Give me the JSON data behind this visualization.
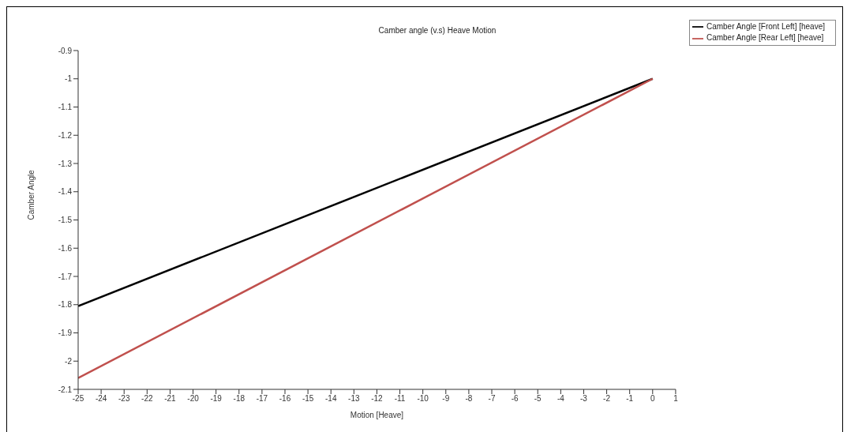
{
  "chart_data": {
    "type": "line",
    "title": "Camber angle (v.s) Heave Motion",
    "xlabel": "Motion [Heave]",
    "ylabel": "Camber Angle",
    "x": [
      -25,
      0
    ],
    "series": [
      {
        "name": "Camber Angle [Front Left] [heave]",
        "color": "#000000",
        "values": [
          -1.805,
          -1.0
        ]
      },
      {
        "name": "Camber Angle [Rear Left] [heave]",
        "color": "#c0504d",
        "values": [
          -2.06,
          -1.0
        ]
      }
    ],
    "xlim": [
      -25,
      1
    ],
    "xticks": [
      -25,
      -24,
      -23,
      -22,
      -21,
      -20,
      -19,
      -18,
      -17,
      -16,
      -15,
      -14,
      -13,
      -12,
      -11,
      -10,
      -9,
      -8,
      -7,
      -6,
      -5,
      -4,
      -3,
      -2,
      -1,
      0,
      1
    ],
    "ylim": [
      -2.1,
      -0.9
    ],
    "yticks": [
      -2.1,
      -2,
      -1.9,
      -1.8,
      -1.7,
      -1.6,
      -1.5,
      -1.4,
      -1.3,
      -1.2,
      -1.1,
      -1,
      -0.9
    ],
    "grid": false,
    "legend": "top right",
    "marker": "none",
    "line_style": "solid"
  }
}
